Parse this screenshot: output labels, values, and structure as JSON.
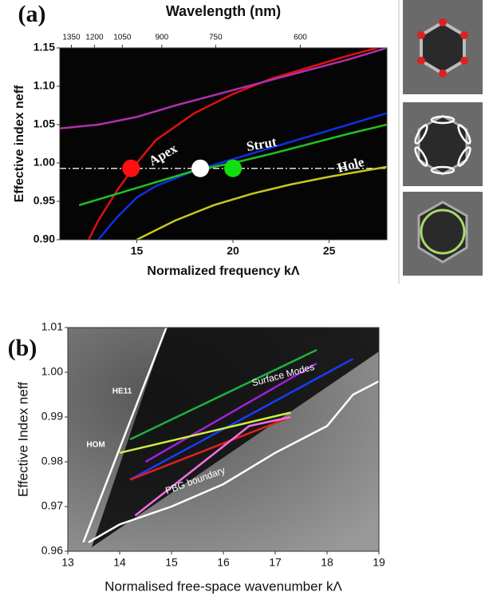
{
  "chart_data": [
    {
      "type": "line",
      "panel_label": "(a)",
      "x2label": "Wavelength (nm)",
      "xlabel": "Normalized frequency kΛ",
      "ylabel": "Effective index neff",
      "xlim": [
        11,
        28
      ],
      "ylim": [
        0.9,
        1.15
      ],
      "xticks": [
        15,
        20,
        25
      ],
      "x2ticks": [
        {
          "value": 11.6,
          "label": "1350"
        },
        {
          "value": 12.8,
          "label": "1200"
        },
        {
          "value": 14.25,
          "label": "1050"
        },
        {
          "value": 16.3,
          "label": "900"
        },
        {
          "value": 19.1,
          "label": "750"
        },
        {
          "value": 23.5,
          "label": "600"
        }
      ],
      "yticks": [
        {
          "value": 0.9,
          "label": "0.90"
        },
        0.95,
        {
          "value": 1.0,
          "label": "1.00"
        },
        1.05,
        {
          "value": 1.1,
          "label": "1.10"
        },
        1.15
      ],
      "reference_line": 0.993,
      "series": [
        {
          "color": "#e01010",
          "x": [
            12.5,
            13,
            14,
            15,
            16,
            18,
            20,
            22,
            24,
            26,
            27.5
          ],
          "values": [
            0.9,
            0.925,
            0.965,
            1.0,
            1.03,
            1.065,
            1.09,
            1.11,
            1.125,
            1.14,
            1.15
          ]
        },
        {
          "color": "#1030e0",
          "x": [
            13,
            14,
            15,
            16,
            18,
            20,
            22,
            24,
            26,
            28
          ],
          "values": [
            0.9,
            0.93,
            0.955,
            0.97,
            0.99,
            1.005,
            1.02,
            1.035,
            1.05,
            1.065
          ]
        },
        {
          "color": "#b030b0",
          "x": [
            11,
            13,
            15,
            17,
            20,
            23,
            26,
            28
          ],
          "values": [
            1.045,
            1.05,
            1.06,
            1.075,
            1.095,
            1.115,
            1.135,
            1.15
          ]
        },
        {
          "color": "#c8c820",
          "x": [
            15,
            17,
            19,
            21,
            23,
            25,
            28
          ],
          "values": [
            0.9,
            0.925,
            0.945,
            0.96,
            0.972,
            0.982,
            0.995
          ]
        },
        {
          "color": "#20c020",
          "x": [
            12,
            14,
            16,
            18,
            20,
            22,
            24,
            26,
            28
          ],
          "values": [
            0.945,
            0.96,
            0.975,
            0.99,
            1.0,
            1.012,
            1.025,
            1.038,
            1.05
          ]
        }
      ],
      "points": [
        {
          "x": 14.7,
          "value": 0.993,
          "color": "#ff1010"
        },
        {
          "x": 18.3,
          "value": 0.993,
          "color": "#ffffff"
        },
        {
          "x": 20,
          "value": 0.993,
          "color": "#10e010"
        }
      ],
      "annotations": [
        "Apex",
        "Strut",
        "Hole"
      ]
    },
    {
      "type": "line",
      "panel_label": "(b)",
      "xlabel": "Normalised free-space wavenumber kΛ",
      "ylabel": "Effective Index neff",
      "xlim": [
        13,
        19
      ],
      "ylim": [
        0.96,
        1.01
      ],
      "xticks": [
        13,
        14,
        15,
        16,
        17,
        18,
        19
      ],
      "yticks": [
        0.96,
        0.97,
        0.98,
        0.99,
        {
          "value": 1.0,
          "label": "1.00"
        },
        1.01
      ],
      "series": [
        {
          "color": "#ffffff",
          "x": [
            13.3,
            14.9
          ],
          "values": [
            0.962,
            1.01
          ]
        },
        {
          "color": "#ffffff",
          "x": [
            13.4,
            14,
            15,
            16,
            17,
            18,
            18.5,
            19
          ],
          "values": [
            0.962,
            0.966,
            0.97,
            0.975,
            0.982,
            0.988,
            0.995,
            0.998
          ]
        },
        {
          "color": "#1a3cff",
          "x": [
            14.2,
            18.5
          ],
          "values": [
            0.976,
            1.003
          ]
        },
        {
          "color": "#20b040",
          "x": [
            14.2,
            17.8
          ],
          "values": [
            0.985,
            1.005
          ]
        },
        {
          "color": "#a020e0",
          "x": [
            14.5,
            17.8
          ],
          "values": [
            0.98,
            1.002
          ]
        },
        {
          "color": "#e02020",
          "x": [
            14.2,
            17.3
          ],
          "values": [
            0.976,
            0.99
          ]
        },
        {
          "color": "#f070e0",
          "x": [
            14.3,
            16.5,
            17.3
          ],
          "values": [
            0.968,
            0.988,
            0.99
          ]
        },
        {
          "color": "#d0f040",
          "x": [
            14,
            17.3
          ],
          "values": [
            0.982,
            0.991
          ]
        }
      ],
      "annotations": [
        "Surface Modes",
        "PBG boundary",
        "HE11",
        "HOM"
      ]
    }
  ]
}
